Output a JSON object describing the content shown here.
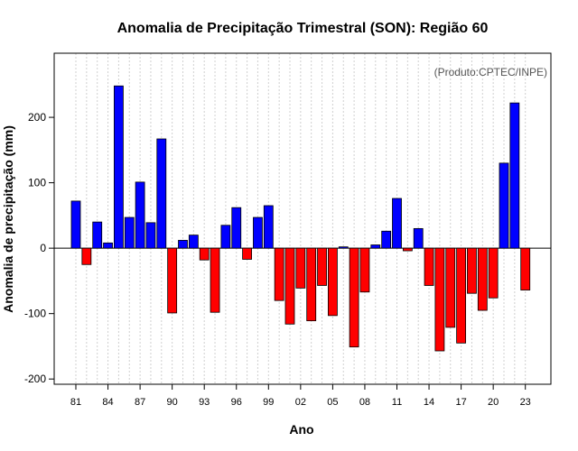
{
  "chart_data": {
    "type": "bar",
    "title": "Anomalia de Precipitação Trimestral (SON): Região 60",
    "xlabel": "Ano",
    "ylabel": "Anomalia de precipitação (mm)",
    "credit": "(Produto:CPTEC/INPE)",
    "ylim": [
      -208,
      298
    ],
    "yticks": [
      -200,
      -100,
      0,
      100,
      200
    ],
    "xtick_labels": [
      "81",
      "84",
      "87",
      "90",
      "93",
      "96",
      "99",
      "02",
      "05",
      "08",
      "11",
      "14",
      "17",
      "20",
      "23"
    ],
    "xtick_years": [
      1981,
      1984,
      1987,
      1990,
      1993,
      1996,
      1999,
      2002,
      2005,
      2008,
      2011,
      2014,
      2017,
      2020,
      2023
    ],
    "grid": true,
    "positive_color": "#0000ff",
    "negative_color": "#ff0000",
    "years": [
      1981,
      1982,
      1983,
      1984,
      1985,
      1986,
      1987,
      1988,
      1989,
      1990,
      1991,
      1992,
      1993,
      1994,
      1995,
      1996,
      1997,
      1998,
      1999,
      2000,
      2001,
      2002,
      2003,
      2004,
      2005,
      2006,
      2007,
      2008,
      2009,
      2010,
      2011,
      2012,
      2013,
      2014,
      2015,
      2016,
      2017,
      2018,
      2019,
      2020,
      2021,
      2022,
      2023
    ],
    "values": [
      72,
      -25,
      40,
      8,
      248,
      47,
      101,
      39,
      167,
      -99,
      12,
      20,
      -18,
      -98,
      35,
      62,
      -17,
      47,
      65,
      -80,
      -116,
      -61,
      -111,
      -57,
      -103,
      2,
      -151,
      -67,
      5,
      26,
      76,
      -4,
      30,
      -57,
      -157,
      -121,
      -145,
      -69,
      -95,
      -76,
      130,
      222,
      -64
    ]
  }
}
